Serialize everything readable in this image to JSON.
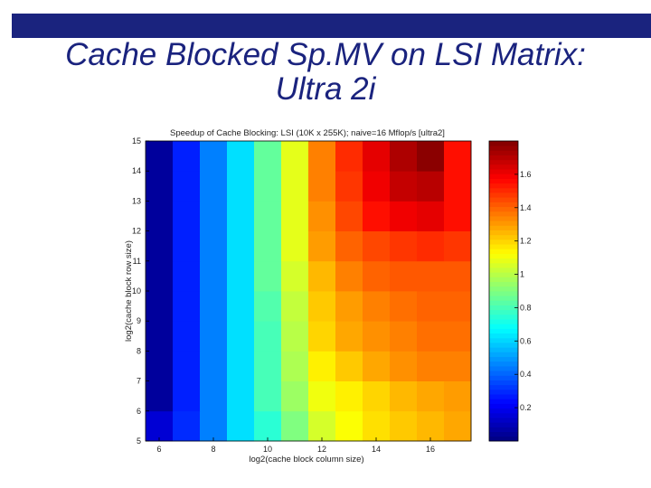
{
  "slide": {
    "title_line1": "Cache Blocked Sp.MV on LSI Matrix:",
    "title_line2": "Ultra 2i"
  },
  "chart_data": {
    "type": "heatmap",
    "title": "Speedup of Cache Blocking: LSI (10K x 255K); naive=16 Mflop/s [ultra2]",
    "xlabel": "log2(cache block column size)",
    "ylabel": "log2(cache block row size)",
    "x": [
      6,
      7,
      8,
      9,
      10,
      11,
      12,
      13,
      14,
      15,
      16,
      17
    ],
    "y": [
      5,
      6,
      7,
      8,
      9,
      10,
      11,
      12,
      13,
      14
    ],
    "xticks": [
      "6",
      "8",
      "10",
      "12",
      "14",
      "16"
    ],
    "yticks": [
      "5",
      "6",
      "7",
      "8",
      "9",
      "10",
      "11",
      "12",
      "13",
      "14",
      "15"
    ],
    "colorbar": {
      "min": 0,
      "max": 1.8,
      "ticks": [
        "0.2",
        "0.4",
        "0.6",
        "0.8",
        "1",
        "1.2",
        "1.4",
        "1.6"
      ]
    },
    "values": [
      [
        0.15,
        0.3,
        0.45,
        0.62,
        0.75,
        0.9,
        1.05,
        1.12,
        1.18,
        1.22,
        1.25,
        1.28
      ],
      [
        0.05,
        0.28,
        0.45,
        0.62,
        0.8,
        0.95,
        1.1,
        1.15,
        1.2,
        1.25,
        1.28,
        1.3
      ],
      [
        0.05,
        0.28,
        0.45,
        0.62,
        0.8,
        0.98,
        1.15,
        1.22,
        1.28,
        1.32,
        1.35,
        1.35
      ],
      [
        0.05,
        0.28,
        0.45,
        0.62,
        0.8,
        1.0,
        1.2,
        1.28,
        1.32,
        1.35,
        1.38,
        1.38
      ],
      [
        0.05,
        0.28,
        0.45,
        0.62,
        0.82,
        1.02,
        1.22,
        1.3,
        1.35,
        1.38,
        1.4,
        1.4
      ],
      [
        0.05,
        0.28,
        0.45,
        0.62,
        0.85,
        1.05,
        1.25,
        1.35,
        1.4,
        1.42,
        1.42,
        1.42
      ],
      [
        0.05,
        0.28,
        0.45,
        0.62,
        0.85,
        1.08,
        1.3,
        1.4,
        1.45,
        1.48,
        1.5,
        1.48
      ],
      [
        0.05,
        0.28,
        0.45,
        0.62,
        0.85,
        1.08,
        1.32,
        1.45,
        1.55,
        1.6,
        1.62,
        1.55
      ],
      [
        0.05,
        0.28,
        0.45,
        0.62,
        0.85,
        1.08,
        1.35,
        1.48,
        1.6,
        1.68,
        1.7,
        1.55
      ],
      [
        0.05,
        0.28,
        0.45,
        0.62,
        0.85,
        1.08,
        1.35,
        1.5,
        1.62,
        1.72,
        1.78,
        1.55
      ]
    ]
  }
}
